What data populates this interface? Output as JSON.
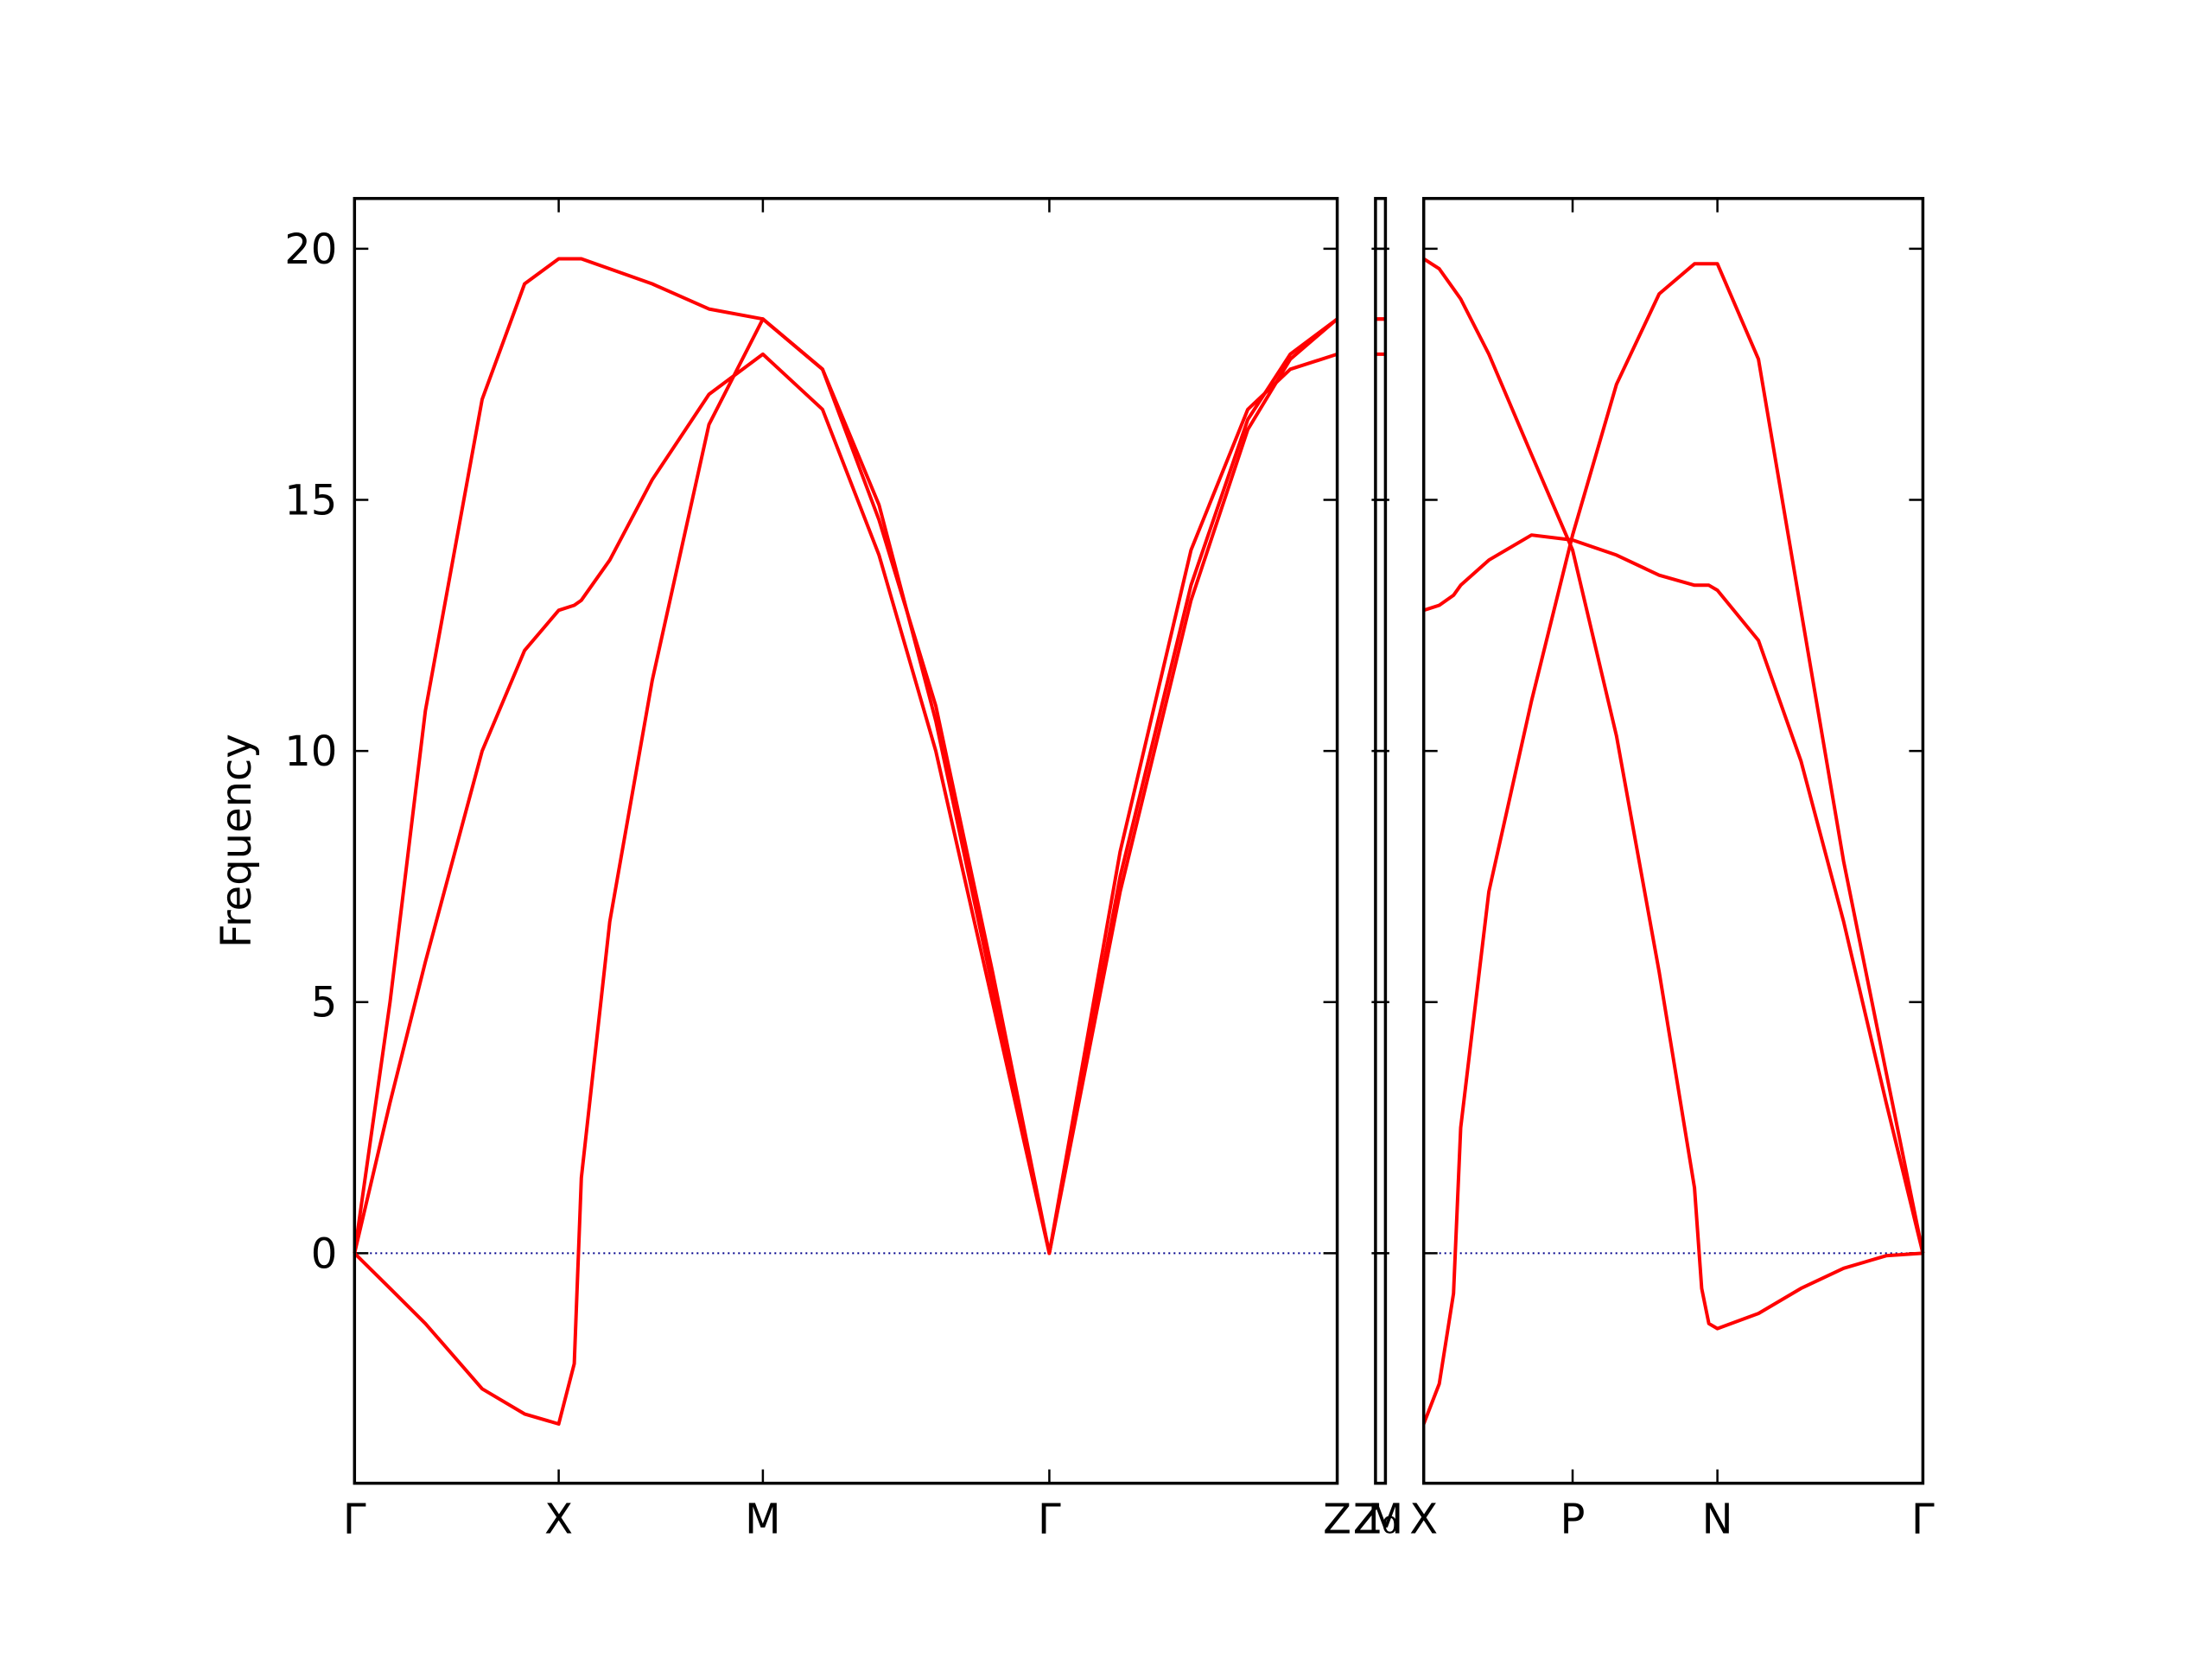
{
  "chart_data": [
    {
      "type": "line",
      "ylabel": "Frequency",
      "x": [
        0,
        0.174,
        0.347,
        0.625,
        0.833,
        1,
        1.076,
        1.111,
        1.25,
        1.458,
        1.736,
        2,
        2.292,
        2.569,
        2.847,
        3.125,
        3.403,
        3.75,
        4.097,
        4.375,
        4.583,
        4.813
      ],
      "series": [
        {
          "color": "#ff0000",
          "values": [
            0,
            5.0,
            10.8,
            17.0,
            19.3,
            19.8,
            19.8,
            19.8,
            19.6,
            19.3,
            18.8,
            18.6,
            17.6,
            14.6,
            10.9,
            5.6,
            0,
            8.0,
            14.0,
            16.8,
            17.6,
            17.9
          ]
        },
        {
          "color": "#ff0000",
          "values": [
            0,
            3.0,
            5.8,
            10.0,
            12.0,
            12.8,
            12.9,
            13.0,
            13.8,
            15.4,
            17.1,
            17.9,
            16.8,
            13.9,
            10.0,
            5.0,
            0,
            7.5,
            13.3,
            16.6,
            17.9,
            18.6
          ]
        },
        {
          "color": "#ff0000",
          "values": [
            0,
            -0.7,
            -1.4,
            -2.7,
            -3.2,
            -3.4,
            -2.2,
            1.5,
            6.6,
            11.4,
            16.5,
            18.6,
            17.6,
            14.9,
            10.6,
            5.3,
            0,
            7.2,
            13.0,
            16.4,
            17.8,
            18.6
          ]
        }
      ],
      "xlim": [
        0,
        4.813
      ],
      "xticks": [
        {
          "value": 0,
          "label": "Γ"
        },
        {
          "value": 1,
          "label": "X"
        },
        {
          "value": 2,
          "label": "M"
        },
        {
          "value": 3.403,
          "label": "Γ"
        },
        {
          "value": 4.813,
          "label": "Z"
        }
      ],
      "ylim": [
        -4.58,
        21.0
      ],
      "yticks": [
        0,
        5,
        10,
        15,
        20
      ],
      "hline": 0,
      "hline_color": "#00008b"
    },
    {
      "type": "line",
      "x": [
        0,
        0.049
      ],
      "series": [
        {
          "color": "#ff0000",
          "values": [
            17.9,
            17.9
          ]
        },
        {
          "color": "#ff0000",
          "values": [
            18.6,
            18.6
          ]
        },
        {
          "color": "#ff0000",
          "values": [
            18.6,
            18.6
          ]
        }
      ],
      "xlim": [
        0,
        0.049
      ],
      "xticks": [
        {
          "value": 0,
          "label": "Z₀"
        },
        {
          "value": 0.049,
          "label": "M"
        }
      ],
      "ylim": [
        -4.58,
        21.0
      ],
      "yticks": [
        0,
        5,
        10,
        15,
        20
      ],
      "hline": 0,
      "hline_color": "#00008b"
    },
    {
      "type": "line",
      "x": [
        0,
        0.076,
        0.146,
        0.181,
        0.319,
        0.528,
        0.729,
        0.944,
        1.153,
        1.326,
        1.361,
        1.396,
        1.438,
        1.639,
        1.847,
        2.056,
        2.264,
        2.444
      ],
      "series": [
        {
          "color": "#ff0000",
          "values": [
            19.8,
            19.6,
            19.2,
            19.0,
            17.9,
            15.9,
            14.0,
            10.3,
            5.6,
            1.3,
            -0.7,
            -1.4,
            -1.5,
            -1.2,
            -0.7,
            -0.3,
            -0.05,
            0
          ]
        },
        {
          "color": "#ff0000",
          "values": [
            12.8,
            12.9,
            13.1,
            13.3,
            13.8,
            14.3,
            14.2,
            13.9,
            13.5,
            13.3,
            13.3,
            13.3,
            13.2,
            12.2,
            9.8,
            6.6,
            3.0,
            0
          ]
        },
        {
          "color": "#ff0000",
          "values": [
            -3.4,
            -2.6,
            -0.8,
            2.5,
            7.2,
            11.0,
            14.3,
            17.3,
            19.1,
            19.7,
            19.7,
            19.7,
            19.7,
            17.8,
            12.8,
            7.8,
            3.6,
            0
          ]
        }
      ],
      "xlim": [
        0,
        2.444
      ],
      "xticks": [
        {
          "value": 0,
          "label": "X"
        },
        {
          "value": 0.729,
          "label": "P"
        },
        {
          "value": 1.438,
          "label": "N"
        },
        {
          "value": 2.444,
          "label": "Γ"
        }
      ],
      "ylim": [
        -4.58,
        21.0
      ],
      "yticks": [
        0,
        5,
        10,
        15,
        20
      ],
      "hline": 0,
      "hline_color": "#00008b"
    }
  ]
}
